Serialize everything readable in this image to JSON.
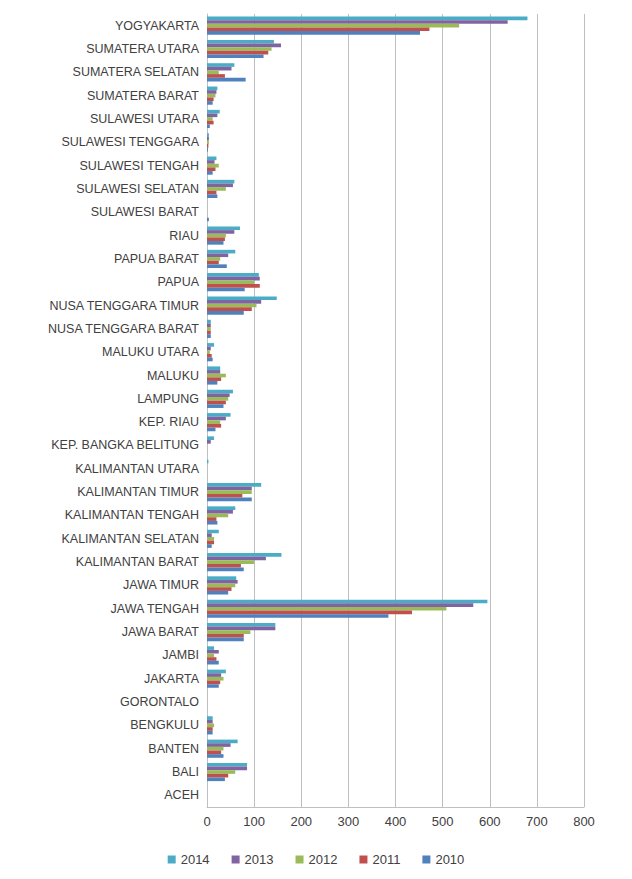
{
  "chart_data": {
    "type": "bar",
    "orientation": "horizontal",
    "grid": true,
    "legend": "bottom",
    "categories": [
      "ACEH",
      "BALI",
      "BANTEN",
      "BENGKULU",
      "GORONTALO",
      "JAKARTA",
      "JAMBI",
      "JAWA BARAT",
      "JAWA TENGAH",
      "JAWA TIMUR",
      "KALIMANTAN BARAT",
      "KALIMANTAN SELATAN",
      "KALIMANTAN TENGAH",
      "KALIMANTAN TIMUR",
      "KALIMANTAN UTARA",
      "KEP. BANGKA BELITUNG",
      "KEP. RIAU",
      "LAMPUNG",
      "MALUKU",
      "MALUKU UTARA",
      "NUSA TENGGARA BARAT",
      "NUSA TENGGARA TIMUR",
      "PAPUA",
      "PAPUA BARAT",
      "RIAU",
      "SULAWESI BARAT",
      "SULAWESI SELATAN",
      "SULAWESI TENGAH",
      "SULAWESI TENGGARA",
      "SULAWESI UTARA",
      "SUMATERA BARAT",
      "SUMATERA SELATAN",
      "SUMATERA UTARA",
      "YOGYAKARTA"
    ],
    "xlim": [
      0,
      800
    ],
    "xticks": [
      0,
      100,
      200,
      300,
      400,
      500,
      600,
      700,
      800
    ],
    "series": [
      {
        "name": "2014",
        "color": "#4bacc6",
        "values": [
          0,
          85,
          65,
          12,
          0,
          40,
          15,
          145,
          595,
          62,
          158,
          25,
          60,
          115,
          3,
          15,
          50,
          55,
          28,
          15,
          8,
          148,
          110,
          60,
          70,
          0,
          58,
          20,
          4,
          27,
          22,
          58,
          142,
          680
        ]
      },
      {
        "name": "2013",
        "color": "#8064a2",
        "values": [
          0,
          85,
          50,
          12,
          0,
          30,
          25,
          145,
          565,
          65,
          125,
          10,
          55,
          95,
          0,
          8,
          40,
          48,
          28,
          8,
          8,
          115,
          112,
          45,
          58,
          0,
          55,
          16,
          4,
          22,
          20,
          52,
          157,
          638
        ]
      },
      {
        "name": "2012",
        "color": "#9bbb59",
        "values": [
          0,
          60,
          35,
          15,
          0,
          35,
          15,
          92,
          508,
          60,
          100,
          15,
          45,
          95,
          0,
          0,
          28,
          45,
          40,
          6,
          8,
          105,
          100,
          28,
          40,
          0,
          40,
          25,
          4,
          12,
          18,
          25,
          137,
          535
        ]
      },
      {
        "name": "2011",
        "color": "#c0504d",
        "values": [
          0,
          45,
          30,
          12,
          0,
          28,
          20,
          78,
          435,
          52,
          72,
          15,
          20,
          75,
          0,
          0,
          30,
          40,
          30,
          10,
          8,
          95,
          112,
          25,
          38,
          0,
          20,
          18,
          3,
          14,
          14,
          38,
          130,
          472
        ]
      },
      {
        "name": "2010",
        "color": "#4f81bd",
        "values": [
          0,
          38,
          35,
          12,
          0,
          25,
          25,
          78,
          385,
          45,
          78,
          10,
          22,
          95,
          0,
          0,
          18,
          35,
          22,
          12,
          8,
          78,
          80,
          42,
          35,
          4,
          22,
          12,
          2,
          6,
          12,
          82,
          120,
          452
        ]
      }
    ]
  }
}
